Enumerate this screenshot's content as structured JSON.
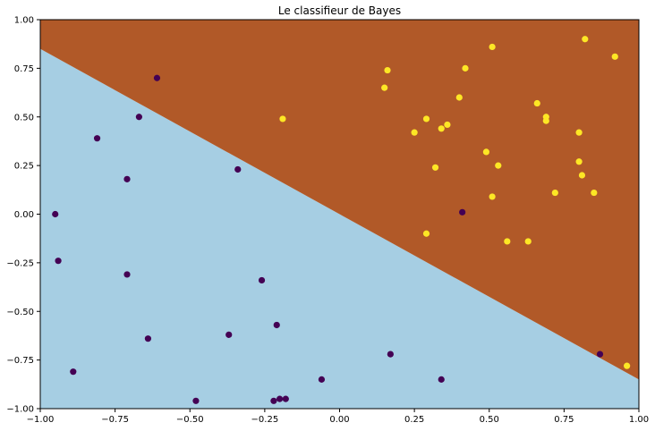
{
  "chart_data": {
    "type": "scatter",
    "title": "Le classifieur de Bayes",
    "xlabel": "",
    "ylabel": "",
    "xlim": [
      -1.0,
      1.0
    ],
    "ylim": [
      -1.0,
      1.0
    ],
    "x_ticks": [
      -1.0,
      -0.75,
      -0.5,
      -0.25,
      0.0,
      0.25,
      0.5,
      0.75,
      1.0
    ],
    "y_ticks": [
      -1.0,
      -0.75,
      -0.5,
      -0.25,
      0.0,
      0.25,
      0.5,
      0.75,
      1.0
    ],
    "x_tick_labels": [
      "−1.00",
      "−0.75",
      "−0.50",
      "−0.25",
      "0.00",
      "0.25",
      "0.50",
      "0.75",
      "1.00"
    ],
    "y_tick_labels": [
      "−1.00",
      "−0.75",
      "−0.50",
      "−0.25",
      "0.00",
      "0.25",
      "0.50",
      "0.75",
      "1.00"
    ],
    "grid": false,
    "decision_boundary": {
      "line": [
        [
          -1.0,
          0.85
        ],
        [
          1.0,
          -0.85
        ]
      ],
      "region_above_color": "#b15928",
      "region_below_color": "#a6cee3"
    },
    "series": [
      {
        "color": "#440154",
        "points": [
          [
            -0.61,
            0.7
          ],
          [
            -0.67,
            0.5
          ],
          [
            -0.81,
            0.39
          ],
          [
            -0.71,
            0.18
          ],
          [
            -0.34,
            0.23
          ],
          [
            -0.95,
            0.0
          ],
          [
            -0.94,
            -0.24
          ],
          [
            -0.71,
            -0.31
          ],
          [
            -0.26,
            -0.34
          ],
          [
            -0.21,
            -0.57
          ],
          [
            -0.37,
            -0.62
          ],
          [
            -0.64,
            -0.64
          ],
          [
            -0.89,
            -0.81
          ],
          [
            -0.48,
            -0.96
          ],
          [
            -0.22,
            -0.96
          ],
          [
            -0.2,
            -0.95
          ],
          [
            -0.18,
            -0.95
          ],
          [
            -0.06,
            -0.85
          ],
          [
            0.17,
            -0.72
          ],
          [
            0.34,
            -0.85
          ],
          [
            0.41,
            0.01
          ],
          [
            0.87,
            -0.72
          ]
        ]
      },
      {
        "color": "#fde725",
        "points": [
          [
            0.16,
            0.74
          ],
          [
            0.15,
            0.65
          ],
          [
            -0.19,
            0.49
          ],
          [
            0.51,
            0.86
          ],
          [
            0.42,
            0.75
          ],
          [
            0.82,
            0.9
          ],
          [
            0.92,
            0.81
          ],
          [
            0.4,
            0.6
          ],
          [
            0.66,
            0.57
          ],
          [
            0.29,
            0.49
          ],
          [
            0.36,
            0.46
          ],
          [
            0.34,
            0.44
          ],
          [
            0.25,
            0.42
          ],
          [
            0.69,
            0.5
          ],
          [
            0.69,
            0.48
          ],
          [
            0.8,
            0.42
          ],
          [
            0.49,
            0.32
          ],
          [
            0.32,
            0.24
          ],
          [
            0.53,
            0.25
          ],
          [
            0.8,
            0.27
          ],
          [
            0.81,
            0.2
          ],
          [
            0.72,
            0.11
          ],
          [
            0.85,
            0.11
          ],
          [
            0.51,
            0.09
          ],
          [
            0.29,
            -0.1
          ],
          [
            0.56,
            -0.14
          ],
          [
            0.63,
            -0.14
          ],
          [
            0.96,
            -0.78
          ]
        ]
      }
    ]
  }
}
